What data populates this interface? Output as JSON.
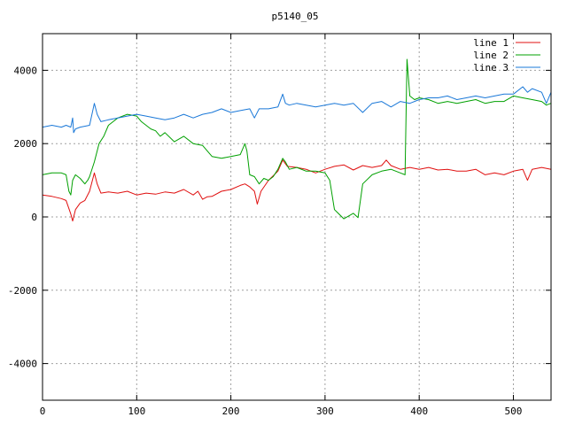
{
  "chart_data": {
    "type": "line",
    "title": "p5140_05",
    "xlabel": "",
    "ylabel": "",
    "xlim": [
      0,
      540
    ],
    "ylim": [
      -5000,
      5000
    ],
    "xticks": [
      0,
      100,
      200,
      300,
      400,
      500
    ],
    "yticks": [
      -4000,
      -2000,
      0,
      2000,
      4000
    ],
    "grid": true,
    "legend_position": "top-right",
    "series": [
      {
        "name": "line 1",
        "color": "#e01010",
        "x": [
          0,
          10,
          20,
          25,
          30,
          32,
          35,
          40,
          45,
          50,
          55,
          58,
          62,
          70,
          80,
          90,
          100,
          110,
          120,
          130,
          140,
          150,
          160,
          165,
          170,
          175,
          180,
          190,
          200,
          210,
          215,
          220,
          225,
          228,
          232,
          240,
          250,
          255,
          260,
          270,
          280,
          290,
          300,
          310,
          320,
          330,
          340,
          350,
          360,
          365,
          370,
          380,
          390,
          400,
          410,
          420,
          430,
          440,
          450,
          460,
          470,
          480,
          490,
          500,
          510,
          515,
          520,
          530,
          540
        ],
        "values": [
          600,
          560,
          500,
          450,
          80,
          -110,
          200,
          380,
          450,
          700,
          1200,
          900,
          650,
          680,
          650,
          700,
          600,
          650,
          620,
          680,
          650,
          750,
          600,
          700,
          480,
          550,
          560,
          700,
          750,
          860,
          900,
          820,
          700,
          350,
          700,
          1000,
          1250,
          1550,
          1380,
          1350,
          1300,
          1200,
          1300,
          1380,
          1420,
          1280,
          1400,
          1350,
          1400,
          1550,
          1400,
          1300,
          1350,
          1300,
          1350,
          1280,
          1300,
          1250,
          1250,
          1300,
          1150,
          1200,
          1150,
          1250,
          1300,
          1000,
          1300,
          1350,
          1300
        ]
      },
      {
        "name": "line 2",
        "color": "#00a000",
        "x": [
          0,
          10,
          20,
          25,
          28,
          30,
          32,
          35,
          40,
          45,
          48,
          50,
          55,
          60,
          65,
          70,
          80,
          90,
          100,
          105,
          110,
          115,
          120,
          125,
          130,
          140,
          150,
          160,
          170,
          180,
          190,
          200,
          210,
          215,
          217,
          220,
          225,
          230,
          235,
          240,
          245,
          250,
          255,
          258,
          262,
          270,
          280,
          290,
          300,
          305,
          310,
          320,
          330,
          335,
          340,
          350,
          360,
          370,
          380,
          385,
          387,
          390,
          395,
          400,
          410,
          420,
          430,
          440,
          450,
          460,
          470,
          480,
          490,
          500,
          510,
          520,
          530,
          535,
          540
        ],
        "values": [
          1150,
          1200,
          1200,
          1150,
          700,
          600,
          1000,
          1150,
          1050,
          900,
          1000,
          1100,
          1500,
          2000,
          2200,
          2500,
          2700,
          2800,
          2750,
          2600,
          2500,
          2400,
          2350,
          2200,
          2300,
          2050,
          2200,
          2000,
          1950,
          1650,
          1600,
          1650,
          1700,
          2000,
          1800,
          1150,
          1100,
          900,
          1050,
          1000,
          1100,
          1300,
          1600,
          1500,
          1300,
          1350,
          1250,
          1250,
          1200,
          1000,
          200,
          -50,
          100,
          -20,
          900,
          1150,
          1250,
          1300,
          1200,
          1150,
          4300,
          3300,
          3200,
          3250,
          3200,
          3100,
          3150,
          3100,
          3150,
          3200,
          3100,
          3150,
          3150,
          3300,
          3250,
          3200,
          3150,
          3050,
          3100
        ]
      },
      {
        "name": "line 3",
        "color": "#1a78d8",
        "x": [
          0,
          10,
          20,
          25,
          30,
          32,
          33,
          35,
          40,
          50,
          55,
          58,
          62,
          70,
          80,
          90,
          100,
          110,
          120,
          130,
          140,
          150,
          160,
          170,
          180,
          190,
          200,
          210,
          220,
          225,
          230,
          240,
          250,
          255,
          258,
          262,
          270,
          280,
          290,
          300,
          310,
          320,
          330,
          340,
          350,
          360,
          370,
          380,
          390,
          400,
          410,
          420,
          430,
          440,
          450,
          460,
          470,
          480,
          490,
          500,
          510,
          515,
          520,
          530,
          535,
          540
        ],
        "values": [
          2450,
          2500,
          2450,
          2500,
          2450,
          2700,
          2300,
          2400,
          2450,
          2500,
          3100,
          2800,
          2600,
          2650,
          2700,
          2750,
          2800,
          2750,
          2700,
          2650,
          2700,
          2800,
          2700,
          2800,
          2850,
          2950,
          2850,
          2900,
          2950,
          2700,
          2950,
          2950,
          3000,
          3350,
          3100,
          3050,
          3100,
          3050,
          3000,
          3050,
          3100,
          3050,
          3100,
          2850,
          3100,
          3150,
          3000,
          3150,
          3100,
          3200,
          3250,
          3250,
          3300,
          3200,
          3250,
          3300,
          3250,
          3300,
          3350,
          3350,
          3550,
          3400,
          3500,
          3400,
          3100,
          3400
        ]
      }
    ]
  }
}
